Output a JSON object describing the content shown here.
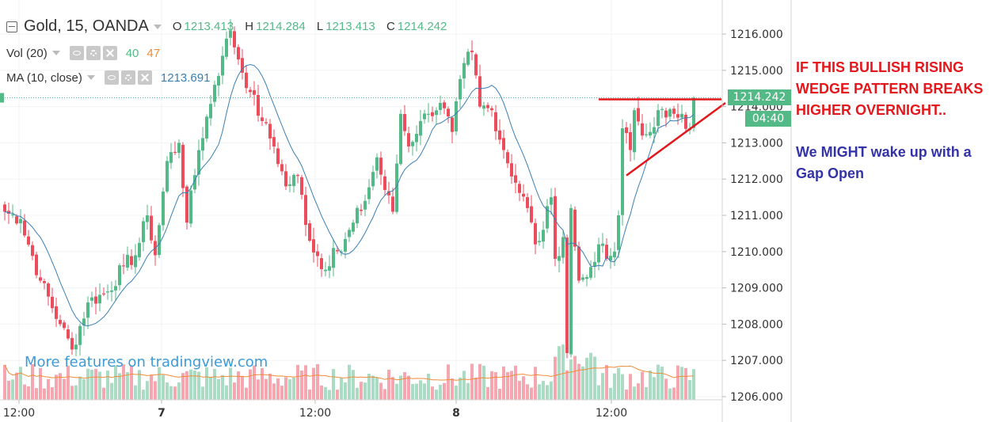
{
  "header": {
    "symbol": "Gold, 15, OANDA",
    "ohlc": [
      {
        "label": "O",
        "value": "1213.413"
      },
      {
        "label": "H",
        "value": "1214.284"
      },
      {
        "label": "L",
        "value": "1213.413"
      },
      {
        "label": "C",
        "value": "1214.242"
      }
    ],
    "vol_label": "Vol (20)",
    "vol_value_a": "40",
    "vol_value_b": "47",
    "ma_label": "MA (10, close)",
    "ma_value": "1213.691"
  },
  "watermark": "More features on tradingview.com",
  "annotation": {
    "line1": "IF THIS BULLISH RISING WEDGE PATTERN BREAKS HIGHER OVERNIGHT..",
    "line2": "We MIGHT wake up with a Gap Open"
  },
  "badges": {
    "price": "1214.242",
    "countdown": "04:40"
  },
  "colors": {
    "up": "#53b987",
    "down": "#eb4d5c",
    "vol_up": "#a9dcc3",
    "vol_down": "#f5a6ae",
    "ma": "#3a7fb3",
    "vol_ma": "#f28c38",
    "trendline": "#e3171c",
    "annotation_red": "#e3171c",
    "annotation_blue": "#3333a8"
  },
  "chart_data": {
    "type": "candlestick",
    "interval": "15",
    "y_ticks": [
      "1216.000",
      "1215.000",
      "1214.000",
      "1213.000",
      "1212.000",
      "1211.000",
      "1210.000",
      "1209.000",
      "1208.000",
      "1207.000",
      "1206.000"
    ],
    "x_ticks": [
      "12:00",
      "7",
      "12:00",
      "8",
      "12:00"
    ],
    "ylim": [
      1205.9,
      1216.75
    ],
    "last_price": 1214.242,
    "path_anchors": [
      {
        "bar": 0,
        "price": 1211.1
      },
      {
        "bar": 4,
        "price": 1210.9
      },
      {
        "bar": 9,
        "price": 1209.2
      },
      {
        "bar": 14,
        "price": 1208.0
      },
      {
        "bar": 17,
        "price": 1207.3
      },
      {
        "bar": 21,
        "price": 1208.6
      },
      {
        "bar": 26,
        "price": 1208.9
      },
      {
        "bar": 30,
        "price": 1209.6
      },
      {
        "bar": 33,
        "price": 1209.9
      },
      {
        "bar": 36,
        "price": 1211.0
      },
      {
        "bar": 38,
        "price": 1209.9
      },
      {
        "bar": 41,
        "price": 1212.5
      },
      {
        "bar": 44,
        "price": 1213.0
      },
      {
        "bar": 46,
        "price": 1210.8
      },
      {
        "bar": 49,
        "price": 1212.8
      },
      {
        "bar": 53,
        "price": 1214.6
      },
      {
        "bar": 55,
        "price": 1215.4
      },
      {
        "bar": 57,
        "price": 1216.1
      },
      {
        "bar": 59,
        "price": 1215.3
      },
      {
        "bar": 62,
        "price": 1214.4
      },
      {
        "bar": 65,
        "price": 1213.6
      },
      {
        "bar": 68,
        "price": 1212.9
      },
      {
        "bar": 71,
        "price": 1211.8
      },
      {
        "bar": 74,
        "price": 1212.1
      },
      {
        "bar": 77,
        "price": 1210.3
      },
      {
        "bar": 81,
        "price": 1209.5
      },
      {
        "bar": 83,
        "price": 1210.1
      },
      {
        "bar": 85,
        "price": 1210.0
      },
      {
        "bar": 88,
        "price": 1210.8
      },
      {
        "bar": 91,
        "price": 1211.4
      },
      {
        "bar": 94,
        "price": 1212.6
      },
      {
        "bar": 96,
        "price": 1211.7
      },
      {
        "bar": 98,
        "price": 1211.1
      },
      {
        "bar": 100,
        "price": 1213.8
      },
      {
        "bar": 102,
        "price": 1212.9
      },
      {
        "bar": 105,
        "price": 1213.6
      },
      {
        "bar": 107,
        "price": 1213.8
      },
      {
        "bar": 110,
        "price": 1214.1
      },
      {
        "bar": 113,
        "price": 1213.3
      },
      {
        "bar": 116,
        "price": 1215.2
      },
      {
        "bar": 118,
        "price": 1215.5
      },
      {
        "bar": 120,
        "price": 1214.0
      },
      {
        "bar": 123,
        "price": 1213.9
      },
      {
        "bar": 126,
        "price": 1212.8
      },
      {
        "bar": 129,
        "price": 1211.9
      },
      {
        "bar": 132,
        "price": 1211.2
      },
      {
        "bar": 134,
        "price": 1210.2
      },
      {
        "bar": 136,
        "price": 1210.6
      },
      {
        "bar": 138,
        "price": 1211.5
      },
      {
        "bar": 139,
        "price": 1209.8
      },
      {
        "bar": 141,
        "price": 1210.4
      },
      {
        "bar": 142,
        "price": 1207.2
      },
      {
        "bar": 143,
        "price": 1211.2
      },
      {
        "bar": 145,
        "price": 1209.2
      },
      {
        "bar": 147,
        "price": 1209.3
      },
      {
        "bar": 150,
        "price": 1210.2
      },
      {
        "bar": 152,
        "price": 1209.8
      },
      {
        "bar": 154,
        "price": 1210.0
      },
      {
        "bar": 155,
        "price": 1211.0
      },
      {
        "bar": 156,
        "price": 1213.4
      },
      {
        "bar": 158,
        "price": 1212.8
      },
      {
        "bar": 159,
        "price": 1213.9
      },
      {
        "bar": 161,
        "price": 1213.2
      },
      {
        "bar": 163,
        "price": 1213.3
      },
      {
        "bar": 165,
        "price": 1213.9
      },
      {
        "bar": 167,
        "price": 1213.7
      },
      {
        "bar": 169,
        "price": 1213.8
      },
      {
        "bar": 171,
        "price": 1213.8
      },
      {
        "bar": 173,
        "price": 1213.4
      },
      {
        "bar": 174,
        "price": 1214.242
      }
    ],
    "trendlines": [
      {
        "name": "resistance",
        "from": {
          "bar": 150,
          "price": 1214.2
        },
        "to": {
          "bar": 181,
          "price": 1214.2
        }
      },
      {
        "name": "support",
        "from": {
          "bar": 157,
          "price": 1212.1
        },
        "to": {
          "bar": 182,
          "price": 1214.1
        }
      }
    ]
  }
}
